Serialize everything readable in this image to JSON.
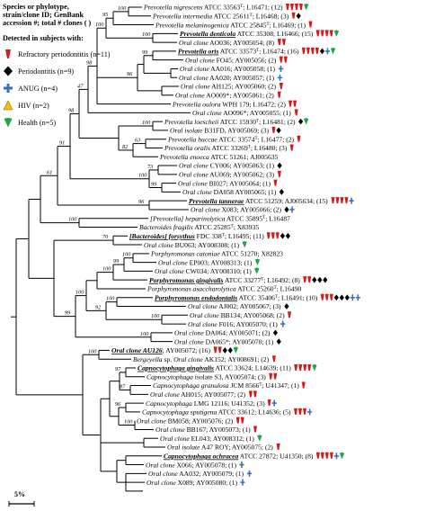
{
  "legend": {
    "header_lines": [
      "Species or phylotype,",
      "strain/clone ID; GenBank",
      "accession #; total # clones ( )"
    ],
    "detected_label": "Detected in subjects with:",
    "items": [
      {
        "label": "Refractory periodontitis (n=11)",
        "icon": "red-flag-icon",
        "color": "#d7191c"
      },
      {
        "label": "Periodontitis (n=9)",
        "icon": "black-diamond-icon",
        "color": "#000000"
      },
      {
        "label": "ANUG (n=4)",
        "icon": "blue-cross-icon",
        "color": "#3b6fc0"
      },
      {
        "label": "HIV (n=2)",
        "icon": "yellow-triangle-icon",
        "color": "#f2c200"
      },
      {
        "label": "Health (n=5)",
        "icon": "green-drop-icon",
        "color": "#1fa64a"
      }
    ]
  },
  "scale_label": "5%",
  "taxa": [
    {
      "segs": [
        {
          "t": "Prevotella nigrescens",
          "i": true
        },
        {
          "t": " ATCC 33563"
        },
        {
          "t": "T",
          "sup": true
        },
        {
          "t": "; L16471; (12)"
        }
      ],
      "m": "RRRRG"
    },
    {
      "segs": [
        {
          "t": "Prevotella intermedia",
          "i": true
        },
        {
          "t": " ATCC 25611"
        },
        {
          "t": "T",
          "sup": true
        },
        {
          "t": "; L16468; (3)"
        }
      ],
      "m": "RD"
    },
    {
      "segs": [
        {
          "t": "Prevotella melaninogenica",
          "i": true
        },
        {
          "t": " ATCC 25845"
        },
        {
          "t": "T",
          "sup": true
        },
        {
          "t": "; L16469; (1)"
        }
      ],
      "m": "R"
    },
    {
      "segs": [
        {
          "t": "Prevotella denticola",
          "i": true,
          "b": true,
          "u": true
        },
        {
          "t": " ATCC 35308; L16466; (15)"
        }
      ],
      "m": "RRRRG"
    },
    {
      "segs": [
        {
          "t": "Oral clone",
          "i": true
        },
        {
          "t": " AO036; AY005054; (8)"
        }
      ],
      "m": "RR"
    },
    {
      "segs": [
        {
          "t": "Prevotella oris",
          "i": true,
          "b": true,
          "u": true
        },
        {
          "t": " ATCC 33573"
        },
        {
          "t": "T",
          "sup": true
        },
        {
          "t": "; L16474; (16)"
        }
      ],
      "m": "RRRRDCG"
    },
    {
      "segs": [
        {
          "t": "Oral clone",
          "i": true
        },
        {
          "t": " FO45; AY005056; (2)"
        }
      ],
      "m": "RR"
    },
    {
      "segs": [
        {
          "t": "Oral clone",
          "i": true
        },
        {
          "t": " AA016; AY005058; (1)"
        }
      ],
      "m": "C"
    },
    {
      "segs": [
        {
          "t": "Oral clone",
          "i": true
        },
        {
          "t": " AA020; AY005057; (1)"
        }
      ],
      "m": "C"
    },
    {
      "segs": [
        {
          "t": "Oral clone",
          "i": true
        },
        {
          "t": " AH125; AY005060; (2)"
        }
      ],
      "m": "R"
    },
    {
      "segs": [
        {
          "t": "Oral clone",
          "i": true
        },
        {
          "t": " AO009*; AY005061; (2)"
        }
      ],
      "m": "R"
    },
    {
      "segs": [
        {
          "t": "Prevotella oulora",
          "i": true
        },
        {
          "t": " WPH 179; L16472; (2)"
        }
      ],
      "m": "RR"
    },
    {
      "segs": [
        {
          "t": "Oral clone",
          "i": true
        },
        {
          "t": " AO096*; AY005055; (1)"
        }
      ],
      "m": "R"
    },
    {
      "segs": [
        {
          "t": "Prevotella loescheii",
          "i": true
        },
        {
          "t": " ATCC 15930"
        },
        {
          "t": "T",
          "sup": true
        },
        {
          "t": "; L16481; (2)"
        }
      ],
      "m": "DG"
    },
    {
      "segs": [
        {
          "t": "Oral isolate",
          "i": true
        },
        {
          "t": " B31FD, AY005069; (3)"
        }
      ],
      "m": "RD"
    },
    {
      "segs": [
        {
          "t": "Prevotella buccae",
          "i": true
        },
        {
          "t": " ATCC 33574"
        },
        {
          "t": "T",
          "sup": true
        },
        {
          "t": "; L16477; (2)"
        }
      ],
      "m": "R"
    },
    {
      "segs": [
        {
          "t": "Prevotella oralis",
          "i": true
        },
        {
          "t": " ATCC 33269"
        },
        {
          "t": "T",
          "sup": true
        },
        {
          "t": "; L16480; (3)"
        }
      ],
      "m": "R"
    },
    {
      "segs": [
        {
          "t": "Prevotella enoeca",
          "i": true
        },
        {
          "t": " ATCC 51261; AJ005635"
        }
      ],
      "m": ""
    },
    {
      "segs": [
        {
          "t": "Oral clone",
          "i": true
        },
        {
          "t": " CY006; AY005063; (1)"
        }
      ],
      "m": "D"
    },
    {
      "segs": [
        {
          "t": "Oral clone",
          "i": true
        },
        {
          "t": " AU069; AY005062; (3)"
        }
      ],
      "m": "R"
    },
    {
      "segs": [
        {
          "t": "Oral clone",
          "i": true
        },
        {
          "t": " BI027; AY005064; (1)"
        }
      ],
      "m": "R"
    },
    {
      "segs": [
        {
          "t": "Oral clone",
          "i": true
        },
        {
          "t": " DA058 AY005065; (1)"
        }
      ],
      "m": "D"
    },
    {
      "segs": [
        {
          "t": "Prevotella tannerae",
          "i": true,
          "b": true,
          "u": true
        },
        {
          "t": " ATCC 51259; AJ005634; (15)"
        }
      ],
      "m": "RRRRC"
    },
    {
      "segs": [
        {
          "t": "Oral clone",
          "i": true
        },
        {
          "t": " X083; AY005066; (2)"
        }
      ],
      "m": "DC"
    },
    {
      "segs": [
        {
          "t": "[Prevotella] heparinolytica",
          "i": true
        },
        {
          "t": " ATCC 35895"
        },
        {
          "t": "T",
          "sup": true
        },
        {
          "t": "; L16487"
        }
      ],
      "m": ""
    },
    {
      "segs": [
        {
          "t": "Bacteroides fragilis",
          "i": true
        },
        {
          "t": " ATCC 25285"
        },
        {
          "t": "T",
          "sup": true
        },
        {
          "t": "; X83935"
        }
      ],
      "m": ""
    },
    {
      "segs": [
        {
          "t": "[Bacteroides] forsythus",
          "i": true,
          "b": true,
          "u": true
        },
        {
          "t": " FDC 338"
        },
        {
          "t": "T",
          "sup": true
        },
        {
          "t": "; L16495; (11)"
        }
      ],
      "m": "RRRDD"
    },
    {
      "segs": [
        {
          "t": "Oral clone",
          "i": true
        },
        {
          "t": " BU063; AY008308; (1)"
        }
      ],
      "m": "G"
    },
    {
      "segs": [
        {
          "t": "Porphyromonas catoniae",
          "i": true
        },
        {
          "t": " ATCC 51270; X82823"
        }
      ],
      "m": ""
    },
    {
      "segs": [
        {
          "t": "Oral clone",
          "i": true
        },
        {
          "t": " EP003; AY008313; (1)"
        }
      ],
      "m": "G"
    },
    {
      "segs": [
        {
          "t": "Oral clone",
          "i": true
        },
        {
          "t": " CW034; AY008310; (1)"
        }
      ],
      "m": "G"
    },
    {
      "segs": [
        {
          "t": "Porphyromonas gingivalis",
          "i": true,
          "b": true,
          "u": true
        },
        {
          "t": " ATCC 33277"
        },
        {
          "t": "T",
          "sup": true
        },
        {
          "t": "; L16492; (8)"
        }
      ],
      "m": "RRDDD"
    },
    {
      "segs": [
        {
          "t": "Porphyromonas asaccharolytica",
          "i": true
        },
        {
          "t": " ATCC 25260"
        },
        {
          "t": "T",
          "sup": true
        },
        {
          "t": "; L16490"
        }
      ],
      "m": ""
    },
    {
      "segs": [
        {
          "t": "Porphyromonas endodontalis",
          "i": true,
          "b": true,
          "u": true
        },
        {
          "t": " ATCC 35406"
        },
        {
          "t": "T",
          "sup": true
        },
        {
          "t": "; L16491; (10)"
        }
      ],
      "m": "RRRDDDCC"
    },
    {
      "segs": [
        {
          "t": "Oral clone",
          "i": true
        },
        {
          "t": " AJ002; AY005067; (3)"
        }
      ],
      "m": "D"
    },
    {
      "segs": [
        {
          "t": "Oral clone",
          "i": true
        },
        {
          "t": " BB134; AY005068; (2)"
        }
      ],
      "m": "R"
    },
    {
      "segs": [
        {
          "t": "Oral clone",
          "i": true
        },
        {
          "t": " F016; AY005070; (1)"
        }
      ],
      "m": "C"
    },
    {
      "segs": [
        {
          "t": "Oral clone",
          "i": true
        },
        {
          "t": " DA064; AY005071; (2)"
        }
      ],
      "m": "D"
    },
    {
      "segs": [
        {
          "t": "Oral clone",
          "i": true
        },
        {
          "t": " DA065*; AY005070; (1)"
        }
      ],
      "m": "D"
    },
    {
      "segs": [
        {
          "t": "Oral clone AU126",
          "i": true,
          "b": true,
          "u": true
        },
        {
          "t": "; AY005072; (16)"
        }
      ],
      "m": "RRDDG"
    },
    {
      "segs": [
        {
          "t": "Bergeyella",
          "i": true
        },
        {
          "t": " sp. "
        },
        {
          "t": "Oral clone",
          "i": true
        },
        {
          "t": " AK152; AY008691; (2)"
        }
      ],
      "m": "R"
    },
    {
      "segs": [
        {
          "t": "Capnocytophaga gingivalis",
          "i": true,
          "b": true,
          "u": true
        },
        {
          "t": " ATCC 33624; L14639; (11)"
        }
      ],
      "m": "RRRRG"
    },
    {
      "segs": [
        {
          "t": "Capnocytophaga",
          "i": true
        },
        {
          "t": " isolate S3, AY005074; (3)"
        }
      ],
      "m": "RR"
    },
    {
      "segs": [
        {
          "t": "Capnocytophaga granulosa",
          "i": true
        },
        {
          "t": " JCM 8566"
        },
        {
          "t": "T",
          "sup": true
        },
        {
          "t": "; U41347; (1)"
        }
      ],
      "m": "R"
    },
    {
      "segs": [
        {
          "t": "Oral clone",
          "i": true
        },
        {
          "t": " AH015; AY005077; (2)"
        }
      ],
      "m": "RR"
    },
    {
      "segs": [
        {
          "t": "Capnocytophaga",
          "i": true
        },
        {
          "t": " LMG 12116; U41352; (3)"
        }
      ],
      "m": "RC"
    },
    {
      "segs": [
        {
          "t": "Capnocytophaga sputigena",
          "i": true
        },
        {
          "t": " ATCC 33612; L14636; (5)"
        }
      ],
      "m": "RRRC"
    },
    {
      "segs": [
        {
          "t": "Oral clone",
          "i": true
        },
        {
          "t": " BM058; AY005076; (2)"
        }
      ],
      "m": "RR"
    },
    {
      "segs": [
        {
          "t": "Oral clone",
          "i": true
        },
        {
          "t": " BB167; AY005073; (1)"
        }
      ],
      "m": "R"
    },
    {
      "segs": [
        {
          "t": "Oral clone",
          "i": true
        },
        {
          "t": " EL043; AY008312; (1)"
        }
      ],
      "m": "G"
    },
    {
      "segs": [
        {
          "t": "Oral isolate",
          "i": true
        },
        {
          "t": " A47 ROY; AY005075; (2)"
        }
      ],
      "m": "R"
    },
    {
      "segs": [
        {
          "t": "Capnocytophaga ochracea",
          "i": true,
          "b": true,
          "u": true
        },
        {
          "t": " ATCC 27872; U41350; (8)"
        }
      ],
      "m": "RRRRCG"
    },
    {
      "segs": [
        {
          "t": "Oral clone",
          "i": true
        },
        {
          "t": " X066; AY005078; (1)"
        }
      ],
      "m": "C"
    },
    {
      "segs": [
        {
          "t": "Oral clone",
          "i": true
        },
        {
          "t": " AA032; AY005079; (1)"
        }
      ],
      "m": "C"
    },
    {
      "segs": [
        {
          "t": "Oral clone",
          "i": true
        },
        {
          "t": " X089; AY005080; (1)"
        }
      ],
      "m": "C"
    }
  ],
  "bootstrap_values": [
    "100",
    "95",
    "100",
    "100",
    "99",
    "96",
    "98",
    "47",
    "100",
    "63",
    "82",
    "98",
    "73",
    "99",
    "100",
    "91",
    "96",
    "61",
    "100",
    "70",
    "100",
    "99",
    "100",
    "100",
    "100",
    "92",
    "100",
    "100",
    "99",
    "100",
    "97",
    "87",
    "96",
    "100"
  ]
}
